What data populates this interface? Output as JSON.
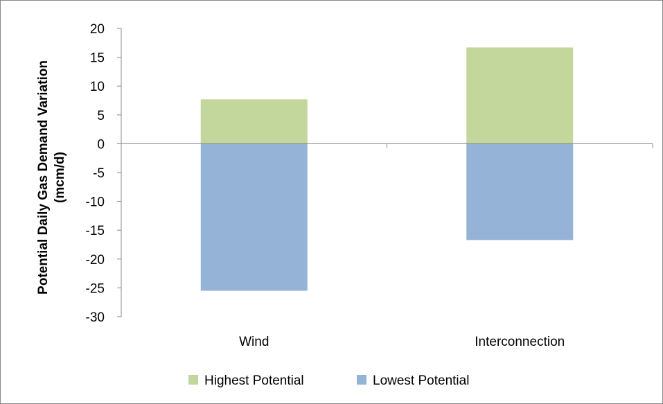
{
  "chart_data": {
    "type": "bar",
    "stacked": true,
    "categories": [
      "Wind",
      "Interconnection"
    ],
    "series": [
      {
        "name": "Highest Potential",
        "values": [
          7.7,
          16.7
        ],
        "color": "#c3d69b"
      },
      {
        "name": "Lowest Potential",
        "values": [
          -25.5,
          -16.7
        ],
        "color": "#95b3d7"
      }
    ],
    "ylabel_lines": [
      "Potential Daily Gas Demand Variation",
      "(mcm/d)"
    ],
    "ylim": [
      -30,
      20
    ],
    "yticks": [
      20,
      15,
      10,
      5,
      0,
      -5,
      -10,
      -15,
      -20,
      -25,
      -30
    ],
    "grid": false,
    "legend_position": "bottom"
  }
}
